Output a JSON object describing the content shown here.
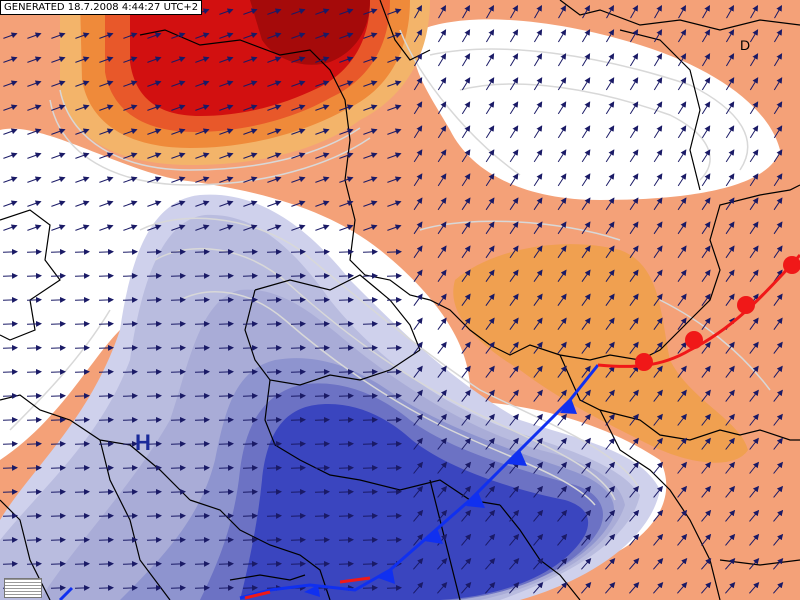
{
  "header": {
    "generated_label": "GENERATED 18.7.2008 4:44:27 UTC+2"
  },
  "map": {
    "pressure_centers": [
      {
        "label": "H",
        "kind": "high"
      }
    ],
    "country_labels": [
      {
        "label": "D"
      }
    ],
    "fronts": [
      {
        "kind": "cold",
        "color": "#1030f0"
      },
      {
        "kind": "warm",
        "color": "#f01818"
      }
    ],
    "colors": {
      "warm_strong": "#d21010",
      "warm_orange": "#f0a050",
      "warm_light": "#f4a178",
      "neutral": "#ffffff",
      "cool_light": "#b9bcdf",
      "cool_mid": "#8e94cf",
      "cool_strong": "#3a45bf",
      "isoline": "#d8d8d8",
      "border": "#000000",
      "wind_arrow": "#1a1a66"
    }
  },
  "legend": {
    "icon": "legend-grid-icon"
  }
}
